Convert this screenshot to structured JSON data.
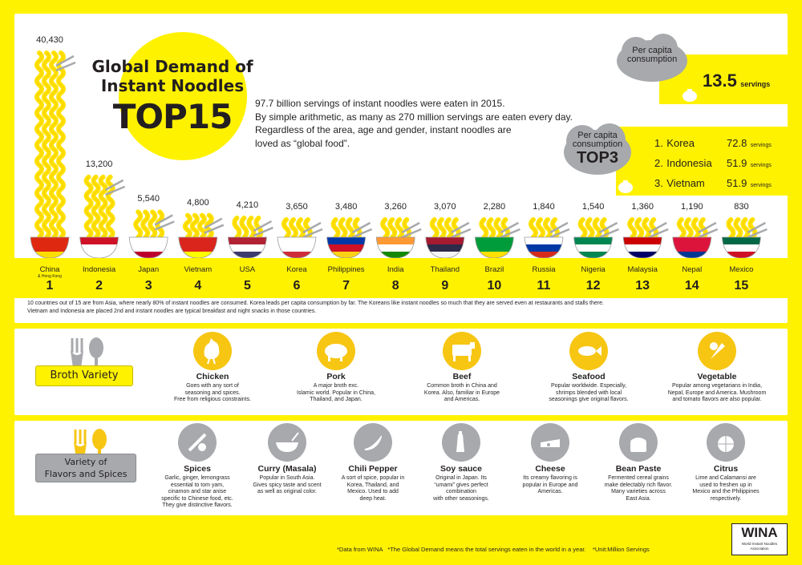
{
  "header": {
    "title_line1": "Global Demand of",
    "title_line2": "Instant Noodles",
    "title_line3": "TOP15",
    "intro": [
      "97.7 billion servings of instant noodles were eaten in 2015.",
      "By simple arithmetic, as many as 270 million servings are eaten every day.",
      "Regardless of the area, age and gender, instant noodles are",
      "loved as “global food”."
    ]
  },
  "per_capita": {
    "cloud_label": "Per capita consumption",
    "value": "13.5",
    "unit": "servings"
  },
  "top3": {
    "cloud_line1": "Per capita",
    "cloud_line2": "consumption",
    "cloud_title": "TOP3",
    "items": [
      {
        "rank": "1.",
        "country": "Korea",
        "value": "72.8",
        "unit": "servings"
      },
      {
        "rank": "2.",
        "country": "Indonesia",
        "value": "51.9",
        "unit": "servings"
      },
      {
        "rank": "3.",
        "country": "Vietnam",
        "value": "51.9",
        "unit": "servings"
      }
    ]
  },
  "chart_data": {
    "type": "bar",
    "title": "Global Demand of Instant Noodles TOP15",
    "unit": "Million Servings",
    "categories": [
      "China",
      "Indonesia",
      "Japan",
      "Vietnam",
      "USA",
      "Korea",
      "Philippines",
      "India",
      "Thailand",
      "Brazil",
      "Russia",
      "Nigeria",
      "Malaysia",
      "Nepal",
      "Mexico"
    ],
    "values": [
      40430,
      13200,
      5540,
      4800,
      4210,
      3650,
      3480,
      3260,
      3070,
      2280,
      1840,
      1540,
      1360,
      1190,
      830
    ],
    "value_labels": [
      "40,430",
      "13,200",
      "5,540",
      "4,800",
      "4,210",
      "3,650",
      "3,480",
      "3,260",
      "3,070",
      "2,280",
      "1,840",
      "1,540",
      "1,360",
      "1,190",
      "830"
    ],
    "ranks": [
      "1",
      "2",
      "3",
      "4",
      "5",
      "6",
      "7",
      "8",
      "9",
      "10",
      "11",
      "12",
      "13",
      "14",
      "15"
    ],
    "china_sub": "& Hong Kong",
    "ylim": [
      0,
      40430
    ]
  },
  "ranking_note": [
    "10 countries out of 15 are from Asia, where nearly 80% of instant noodles are consumed. Korea leads per capita consumption by far. The Koreans like instant noodles so much that they are served even at restaurants and stalls there.",
    "Vietnam and Indonesia are placed 2nd and instant noodles are typical breakfast and night snacks in those countries."
  ],
  "broth": {
    "label": "Broth Variety",
    "items": [
      {
        "icon": "chicken-icon",
        "name": "Chicken",
        "desc": [
          "Goes with any sort of",
          "seasoning and spices.",
          "Free from religious constraints."
        ]
      },
      {
        "icon": "pig-icon",
        "name": "Pork",
        "desc": [
          "A major broth exc.",
          "Islamic world. Popular in China,",
          "Thailand, and Japan."
        ]
      },
      {
        "icon": "cow-icon",
        "name": "Beef",
        "desc": [
          "Common broth in China and",
          "Korea. Also, familiar in Europe",
          "and Americas."
        ]
      },
      {
        "icon": "fish-icon",
        "name": "Seafood",
        "desc": [
          "Popular worldwide. Especially,",
          "shrimps blended with local",
          "seasonings give original flavors."
        ]
      },
      {
        "icon": "vegetable-icon",
        "name": "Vegetable",
        "desc": [
          "Popular among vegetarians in India,",
          "Nepal, Europe and America. Mushroom",
          "and tomato flavors are also popular."
        ]
      }
    ]
  },
  "flavors": {
    "label_line1": "Variety of",
    "label_line2": "Flavors and Spices",
    "items": [
      {
        "icon": "spices-icon",
        "name": "Spices",
        "desc": [
          "Garlic, ginger, lemongrass",
          "essential to tom yam,",
          "cinamon and star anise",
          "specific to Chinese food, etc.",
          "They give distinctive flavors."
        ]
      },
      {
        "icon": "curry-icon",
        "name": "Curry (Masala)",
        "desc": [
          "Popular in South Asia.",
          "Gives spicy taste and scent",
          "as well as original color."
        ]
      },
      {
        "icon": "chili-icon",
        "name": "Chili Pepper",
        "desc": [
          "A sort of spice, popular in",
          "Korea, Thailand, and",
          "Mexico.  Used to add",
          "deep heat."
        ]
      },
      {
        "icon": "soy-sauce-icon",
        "name": "Soy sauce",
        "desc": [
          "Original in Japan.  Its",
          "“umami” gives perfect",
          "combination",
          "with other seasonings."
        ]
      },
      {
        "icon": "cheese-icon",
        "name": "Cheese",
        "desc": [
          "Its creamy flavoring is",
          "popular in Europe and",
          "Americas."
        ]
      },
      {
        "icon": "bean-paste-icon",
        "name": "Bean Paste",
        "desc": [
          "Fermented cereal grains",
          "make delectably rich flavor.",
          "Many varieties across",
          "East Asia."
        ]
      },
      {
        "icon": "citrus-icon",
        "name": "Citrus",
        "desc": [
          "Lime and Calamansi are",
          "used to freshen up in",
          "Mexico and the Philippines",
          "respectively."
        ]
      }
    ]
  },
  "footer": {
    "note": "*Data from WINA   *The Global Demand means the total servings eaten in the world in a year.    *Unit:Million Servings",
    "logo": "WINA",
    "logo_sub": "World Instant Noodles Association"
  },
  "colors": {
    "yellow": "#fff200",
    "icon_yellow": "#f7c613",
    "icon_grey": "#a7a9ac",
    "noodle": "#ffe200",
    "ink": "#231f20"
  }
}
